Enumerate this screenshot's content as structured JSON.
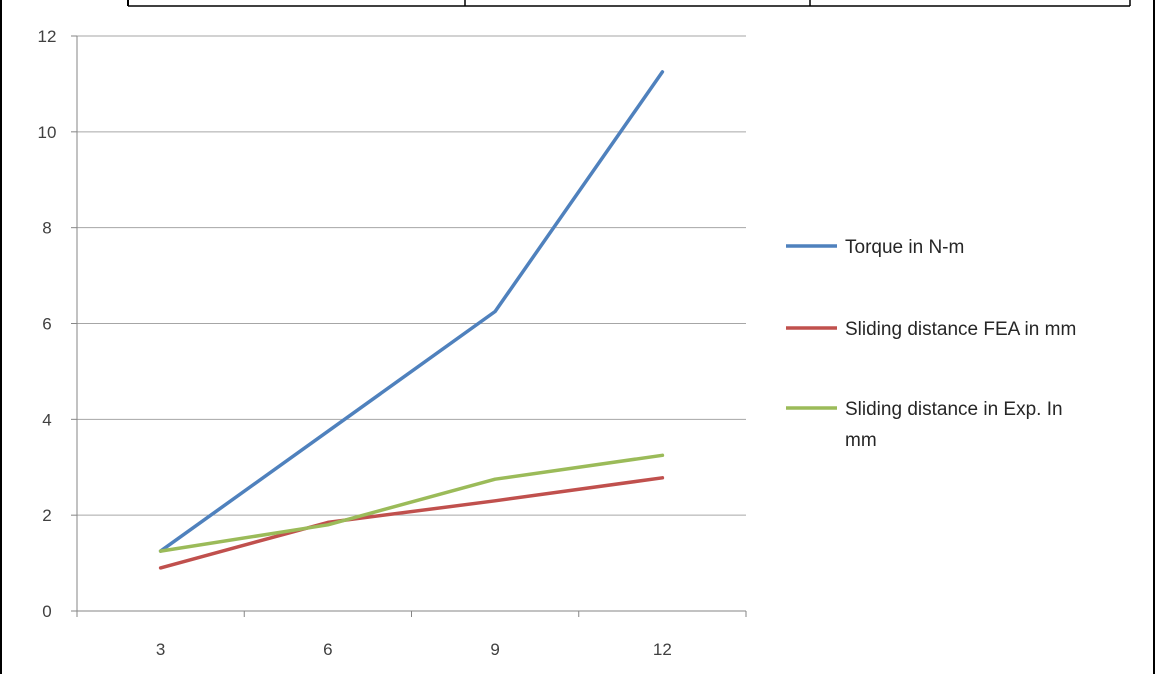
{
  "chart_data": {
    "type": "line",
    "title": "",
    "xlabel": "",
    "ylabel": "",
    "categories": [
      "3",
      "6",
      "9",
      "12"
    ],
    "ylim": [
      0,
      12
    ],
    "yticks": [
      "0",
      "2",
      "4",
      "6",
      "8",
      "10",
      "12"
    ],
    "grid": "horizontal",
    "legend_position": "right",
    "series": [
      {
        "name": "Torque in N-m",
        "color": "#4f81bd",
        "values": [
          1.25,
          3.75,
          6.25,
          11.25
        ]
      },
      {
        "name": "Sliding distance FEA in mm",
        "color": "#c0504d",
        "values": [
          0.9,
          1.85,
          2.3,
          2.78
        ]
      },
      {
        "name": "Sliding distance in Exp. In mm",
        "color": "#9bbb59",
        "values": [
          1.25,
          1.8,
          2.75,
          3.25
        ]
      }
    ]
  }
}
